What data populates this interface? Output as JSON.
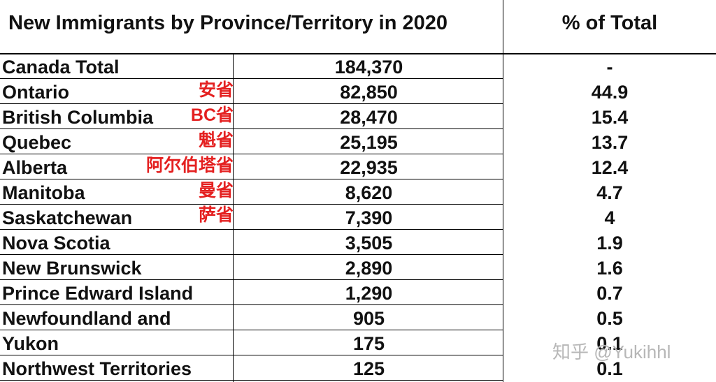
{
  "table": {
    "header_title": "New Immigrants by Province/Territory in 2020",
    "header_pct": "% of Total",
    "rows": [
      {
        "name": "Canada Total",
        "cn": "",
        "value": "184,370",
        "pct": "-"
      },
      {
        "name": "Ontario",
        "cn": "安省",
        "value": "82,850",
        "pct": "44.9"
      },
      {
        "name": "British Columbia",
        "cn": "BC省",
        "value": "28,470",
        "pct": "15.4"
      },
      {
        "name": "Quebec",
        "cn": "魁省",
        "value": "25,195",
        "pct": "13.7"
      },
      {
        "name": "Alberta",
        "cn": "阿尔伯塔省",
        "value": "22,935",
        "pct": "12.4"
      },
      {
        "name": "Manitoba",
        "cn": "曼省",
        "value": "8,620",
        "pct": "4.7"
      },
      {
        "name": "Saskatchewan",
        "cn": "萨省",
        "value": "7,390",
        "pct": "4"
      },
      {
        "name": "Nova Scotia",
        "cn": "",
        "value": "3,505",
        "pct": "1.9"
      },
      {
        "name": "New Brunswick",
        "cn": "",
        "value": "2,890",
        "pct": "1.6"
      },
      {
        "name": "Prince Edward Island",
        "cn": "",
        "value": "1,290",
        "pct": "0.7"
      },
      {
        "name": "Newfoundland and",
        "cn": "",
        "value": "905",
        "pct": "0.5"
      },
      {
        "name": "Yukon",
        "cn": "",
        "value": "175",
        "pct": "0.1"
      },
      {
        "name": "Northwest Territories",
        "cn": "",
        "value": "125",
        "pct": "0.1"
      }
    ]
  },
  "watermark": "知乎 @Yukihhl",
  "colors": {
    "annotation": "#e42020",
    "grid": "#000000"
  }
}
